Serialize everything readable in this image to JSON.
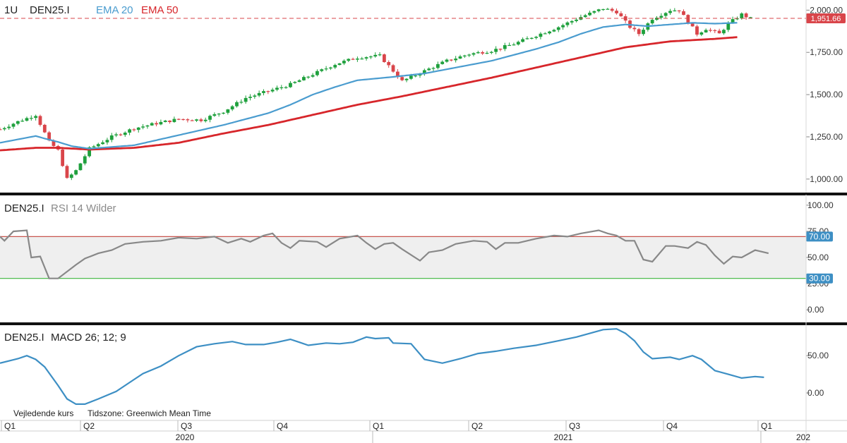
{
  "toolbar": {
    "interval": "1U",
    "symbol": "DEN25.I",
    "ema_short_label": "EMA 20",
    "ema_long_label": "EMA 50"
  },
  "colors": {
    "up": "#1ea03c",
    "down": "#d9454a",
    "ema20": "#4a9ccf",
    "ema50": "#d7262b",
    "rsi": "#888888",
    "macd": "#3d8fc4",
    "rsi_upper": "#c8554f",
    "rsi_lower": "#3db43d",
    "price_badge": "#d9454a",
    "rsi_badge": "#3d8fc4"
  },
  "footer": {
    "price_note": "Vejledende kurs",
    "timezone": "Tidszone: Greenwich Mean Time"
  },
  "chart_data": [
    {
      "type": "candlestick",
      "title": "DEN25.I",
      "overlays": [
        "EMA 20",
        "EMA 50"
      ],
      "ylim": [
        920,
        2060
      ],
      "yticks": [
        "1,000.00",
        "1,250.00",
        "1,500.00",
        "1,750.00",
        "2,000.00"
      ],
      "ytick_values": [
        1000,
        1250,
        1500,
        1750,
        2000
      ],
      "last_price": 1951.66,
      "last_price_label": "1,951.66",
      "x_count": 108,
      "waypoints": [
        [
          0,
          1295
        ],
        [
          4,
          1340
        ],
        [
          8,
          1380
        ],
        [
          11,
          1220
        ],
        [
          13,
          1170
        ],
        [
          15,
          1000
        ],
        [
          17,
          1050
        ],
        [
          20,
          1180
        ],
        [
          25,
          1250
        ],
        [
          30,
          1300
        ],
        [
          35,
          1330
        ],
        [
          40,
          1355
        ],
        [
          45,
          1350
        ],
        [
          50,
          1400
        ],
        [
          55,
          1480
        ],
        [
          60,
          1520
        ],
        [
          65,
          1560
        ],
        [
          70,
          1620
        ],
        [
          75,
          1680
        ],
        [
          80,
          1720
        ],
        [
          85,
          1730
        ],
        [
          88,
          1640
        ],
        [
          90,
          1580
        ],
        [
          95,
          1640
        ],
        [
          100,
          1700
        ],
        [
          105,
          1740
        ],
        [
          110,
          1760
        ],
        [
          115,
          1800
        ],
        [
          120,
          1850
        ],
        [
          125,
          1900
        ],
        [
          130,
          1960
        ],
        [
          135,
          2010
        ],
        [
          138,
          1990
        ],
        [
          141,
          1900
        ],
        [
          143,
          1860
        ],
        [
          146,
          1950
        ],
        [
          150,
          2000
        ],
        [
          152,
          2000
        ],
        [
          154,
          1930
        ],
        [
          156,
          1860
        ],
        [
          158,
          1890
        ],
        [
          161,
          1860
        ],
        [
          163,
          1920
        ],
        [
          166,
          1975
        ],
        [
          168,
          1950
        ]
      ],
      "ema20_points": [
        [
          0,
          1215
        ],
        [
          4,
          1235
        ],
        [
          8,
          1255
        ],
        [
          10,
          1240
        ],
        [
          13,
          1220
        ],
        [
          16,
          1195
        ],
        [
          20,
          1180
        ],
        [
          30,
          1200
        ],
        [
          40,
          1260
        ],
        [
          50,
          1320
        ],
        [
          60,
          1390
        ],
        [
          65,
          1440
        ],
        [
          70,
          1500
        ],
        [
          75,
          1545
        ],
        [
          80,
          1585
        ],
        [
          88,
          1605
        ],
        [
          95,
          1625
        ],
        [
          100,
          1650
        ],
        [
          110,
          1700
        ],
        [
          120,
          1770
        ],
        [
          125,
          1810
        ],
        [
          130,
          1860
        ],
        [
          135,
          1900
        ],
        [
          140,
          1915
        ],
        [
          145,
          1905
        ],
        [
          150,
          1915
        ],
        [
          155,
          1925
        ],
        [
          160,
          1920
        ],
        [
          165,
          1925
        ]
      ],
      "ema50_points": [
        [
          0,
          1170
        ],
        [
          8,
          1185
        ],
        [
          13,
          1185
        ],
        [
          20,
          1175
        ],
        [
          30,
          1185
        ],
        [
          40,
          1215
        ],
        [
          50,
          1270
        ],
        [
          60,
          1320
        ],
        [
          70,
          1380
        ],
        [
          80,
          1440
        ],
        [
          90,
          1490
        ],
        [
          100,
          1545
        ],
        [
          110,
          1600
        ],
        [
          120,
          1660
        ],
        [
          130,
          1720
        ],
        [
          140,
          1780
        ],
        [
          150,
          1815
        ],
        [
          160,
          1830
        ],
        [
          165,
          1840
        ]
      ]
    },
    {
      "type": "line",
      "title": "RSI 14 Wilder",
      "symbol": "DEN25.I",
      "ylim": [
        -12,
        108
      ],
      "yticks": [
        "0.00",
        "25.00",
        "50.00",
        "75.00",
        "100.00"
      ],
      "ytick_values": [
        0,
        25,
        50,
        75,
        100
      ],
      "upper_band": 70,
      "upper_band_label": "70.00",
      "lower_band": 30,
      "lower_band_label": "30.00",
      "points": [
        [
          0,
          70
        ],
        [
          1,
          66
        ],
        [
          3,
          75
        ],
        [
          6,
          76
        ],
        [
          7,
          50
        ],
        [
          9,
          51
        ],
        [
          11,
          30
        ],
        [
          13,
          30
        ],
        [
          17,
          43
        ],
        [
          19,
          49
        ],
        [
          22,
          54
        ],
        [
          25,
          57
        ],
        [
          28,
          63
        ],
        [
          32,
          65
        ],
        [
          36,
          66
        ],
        [
          40,
          69
        ],
        [
          44,
          68
        ],
        [
          48,
          70
        ],
        [
          51,
          64
        ],
        [
          54,
          68
        ],
        [
          56,
          65
        ],
        [
          59,
          71
        ],
        [
          61,
          73
        ],
        [
          63,
          64
        ],
        [
          65,
          59
        ],
        [
          67,
          66
        ],
        [
          71,
          65
        ],
        [
          73,
          60
        ],
        [
          76,
          68
        ],
        [
          80,
          71
        ],
        [
          82,
          64
        ],
        [
          84,
          58
        ],
        [
          86,
          63
        ],
        [
          88,
          64
        ],
        [
          90,
          58
        ],
        [
          94,
          47
        ],
        [
          96,
          55
        ],
        [
          99,
          57
        ],
        [
          102,
          63
        ],
        [
          106,
          66
        ],
        [
          109,
          65
        ],
        [
          111,
          58
        ],
        [
          113,
          64
        ],
        [
          116,
          64
        ],
        [
          120,
          68
        ],
        [
          124,
          71
        ],
        [
          127,
          70
        ],
        [
          130,
          73
        ],
        [
          134,
          76
        ],
        [
          136,
          73
        ],
        [
          138,
          71
        ],
        [
          140,
          66
        ],
        [
          142,
          66
        ],
        [
          144,
          48
        ],
        [
          146,
          46
        ],
        [
          149,
          61
        ],
        [
          151,
          61
        ],
        [
          154,
          59
        ],
        [
          156,
          65
        ],
        [
          158,
          62
        ],
        [
          160,
          52
        ],
        [
          162,
          44
        ],
        [
          164,
          51
        ],
        [
          166,
          50
        ],
        [
          169,
          57
        ],
        [
          172,
          54
        ]
      ]
    },
    {
      "type": "line",
      "title": "MACD 26; 12; 9",
      "symbol": "DEN25.I",
      "ylim": [
        -35,
        90
      ],
      "yticks": [
        "0.00",
        "50.00"
      ],
      "ytick_values": [
        0,
        50
      ],
      "points": [
        [
          0,
          40
        ],
        [
          4,
          46
        ],
        [
          6,
          50
        ],
        [
          8,
          45
        ],
        [
          10,
          35
        ],
        [
          13,
          10
        ],
        [
          15,
          -8
        ],
        [
          17,
          -15
        ],
        [
          19,
          -15
        ],
        [
          22,
          -8
        ],
        [
          26,
          2
        ],
        [
          30,
          18
        ],
        [
          32,
          26
        ],
        [
          36,
          36
        ],
        [
          40,
          50
        ],
        [
          44,
          62
        ],
        [
          48,
          66
        ],
        [
          52,
          69
        ],
        [
          55,
          65
        ],
        [
          59,
          65
        ],
        [
          62,
          68
        ],
        [
          65,
          72
        ],
        [
          67,
          68
        ],
        [
          69,
          64
        ],
        [
          73,
          67
        ],
        [
          76,
          66
        ],
        [
          79,
          68
        ],
        [
          82,
          75
        ],
        [
          84,
          73
        ],
        [
          87,
          74
        ],
        [
          88,
          67
        ],
        [
          92,
          66
        ],
        [
          95,
          45
        ],
        [
          99,
          40
        ],
        [
          103,
          46
        ],
        [
          107,
          53
        ],
        [
          111,
          56
        ],
        [
          115,
          60
        ],
        [
          120,
          64
        ],
        [
          125,
          70
        ],
        [
          129,
          75
        ],
        [
          132,
          80
        ],
        [
          135,
          85
        ],
        [
          138,
          86
        ],
        [
          140,
          80
        ],
        [
          142,
          70
        ],
        [
          144,
          55
        ],
        [
          146,
          46
        ],
        [
          150,
          48
        ],
        [
          152,
          45
        ],
        [
          155,
          50
        ],
        [
          157,
          45
        ],
        [
          160,
          30
        ],
        [
          163,
          25
        ],
        [
          166,
          20
        ],
        [
          169,
          22
        ],
        [
          171,
          21
        ]
      ]
    }
  ],
  "x_axis": {
    "quarters": [
      "Q1",
      "Q2",
      "Q3",
      "Q4",
      "Q1",
      "Q2",
      "Q3",
      "Q4",
      "Q1"
    ],
    "years": [
      "2020",
      "2021",
      "202"
    ]
  }
}
